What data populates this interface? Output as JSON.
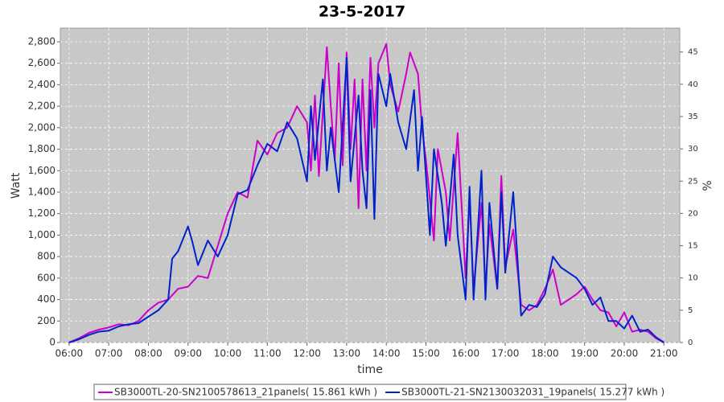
{
  "chart_data": {
    "type": "line",
    "title": "23-5-2017",
    "x_label": "time",
    "y_label": "Watt",
    "y2_label": "%",
    "xlim": [
      5.78,
      21.4
    ],
    "xticks": [
      {
        "value": 6,
        "label": "06:00"
      },
      {
        "value": 7,
        "label": "07:00"
      },
      {
        "value": 8,
        "label": "08:00"
      },
      {
        "value": 9,
        "label": "09:00"
      },
      {
        "value": 10,
        "label": "10:00"
      },
      {
        "value": 11,
        "label": "11:00"
      },
      {
        "value": 12,
        "label": "12:00"
      },
      {
        "value": 13,
        "label": "13:00"
      },
      {
        "value": 14,
        "label": "14:00"
      },
      {
        "value": 15,
        "label": "15:00"
      },
      {
        "value": 16,
        "label": "16:00"
      },
      {
        "value": 17,
        "label": "17:00"
      },
      {
        "value": 18,
        "label": "18:00"
      },
      {
        "value": 19,
        "label": "19:00"
      },
      {
        "value": 20,
        "label": "20:00"
      },
      {
        "value": 21,
        "label": "21:00"
      }
    ],
    "ylim": [
      0,
      2927
    ],
    "yticks": [
      0,
      200,
      400,
      600,
      800,
      {
        "value": 1000,
        "label": "1,000"
      },
      {
        "value": 1200,
        "label": "1,200"
      },
      {
        "value": 1400,
        "label": "1,400"
      },
      {
        "value": 1600,
        "label": "1,600"
      },
      {
        "value": 1800,
        "label": "1,800"
      },
      {
        "value": 2000,
        "label": "2,000"
      },
      {
        "value": 2200,
        "label": "2,200"
      },
      {
        "value": 2400,
        "label": "2,400"
      },
      {
        "value": 2600,
        "label": "2,600"
      },
      {
        "value": 2800,
        "label": "2,800"
      }
    ],
    "y2lim": [
      0,
      48.7
    ],
    "y2ticks": [
      0,
      5,
      10,
      15,
      20,
      25,
      30,
      35,
      40,
      45
    ],
    "grid": true,
    "legend": "bottom",
    "series": [
      {
        "name": "SB3000TL-20-SN2100578613_21panels( 15.861 kWh )",
        "color": "#cc00cc",
        "x": [
          6.0,
          6.25,
          6.5,
          6.75,
          7.0,
          7.25,
          7.5,
          7.75,
          8.0,
          8.25,
          8.5,
          8.75,
          9.0,
          9.25,
          9.5,
          9.75,
          10.0,
          10.25,
          10.5,
          10.75,
          11.0,
          11.25,
          11.5,
          11.75,
          12.0,
          12.1,
          12.2,
          12.3,
          12.5,
          12.6,
          12.7,
          12.8,
          12.9,
          13.0,
          13.1,
          13.2,
          13.3,
          13.4,
          13.5,
          13.6,
          13.7,
          13.8,
          14.0,
          14.1,
          14.3,
          14.5,
          14.6,
          14.8,
          14.9,
          15.0,
          15.2,
          15.3,
          15.5,
          15.6,
          15.8,
          16.0,
          16.1,
          16.2,
          16.4,
          16.5,
          16.6,
          16.8,
          16.9,
          17.0,
          17.2,
          17.4,
          17.6,
          17.8,
          18.0,
          18.2,
          18.4,
          18.6,
          18.8,
          19.0,
          19.2,
          19.4,
          19.6,
          19.8,
          20.0,
          20.2,
          20.4,
          20.6,
          20.8,
          21.0
        ],
        "values": [
          0,
          40,
          90,
          120,
          140,
          170,
          160,
          200,
          300,
          370,
          400,
          500,
          520,
          620,
          600,
          900,
          1200,
          1400,
          1350,
          1880,
          1750,
          1950,
          2000,
          2200,
          2050,
          1600,
          2300,
          1550,
          2750,
          2200,
          1700,
          2600,
          1650,
          2700,
          1800,
          2450,
          1250,
          2450,
          1600,
          2650,
          2000,
          2600,
          2780,
          2400,
          2150,
          2500,
          2700,
          2500,
          2000,
          1700,
          950,
          1800,
          1400,
          950,
          1950,
          600,
          1350,
          500,
          1300,
          500,
          1100,
          500,
          1550,
          700,
          1050,
          350,
          300,
          350,
          500,
          680,
          350,
          400,
          450,
          520,
          400,
          300,
          280,
          150,
          280,
          100,
          120,
          100,
          40,
          0
        ]
      },
      {
        "name": "SB3000TL-21-SN2130032031_19panels( 15.277 kWh )",
        "color": "#0022cc",
        "x": [
          6.0,
          6.25,
          6.5,
          6.75,
          7.0,
          7.25,
          7.5,
          7.75,
          8.0,
          8.25,
          8.5,
          8.6,
          8.75,
          9.0,
          9.1,
          9.25,
          9.5,
          9.75,
          10.0,
          10.25,
          10.5,
          10.75,
          11.0,
          11.25,
          11.5,
          11.75,
          12.0,
          12.1,
          12.2,
          12.4,
          12.5,
          12.6,
          12.8,
          13.0,
          13.1,
          13.3,
          13.4,
          13.5,
          13.6,
          13.7,
          13.8,
          14.0,
          14.1,
          14.3,
          14.5,
          14.7,
          14.8,
          14.9,
          15.1,
          15.2,
          15.4,
          15.5,
          15.7,
          15.8,
          16.0,
          16.1,
          16.2,
          16.4,
          16.5,
          16.6,
          16.8,
          16.9,
          17.0,
          17.2,
          17.4,
          17.6,
          17.8,
          18.0,
          18.2,
          18.4,
          18.6,
          18.8,
          19.0,
          19.2,
          19.4,
          19.6,
          19.8,
          20.0,
          20.2,
          20.4,
          20.6,
          20.8,
          21.0
        ],
        "values": [
          0,
          30,
          70,
          100,
          110,
          150,
          170,
          180,
          240,
          300,
          400,
          780,
          850,
          1080,
          950,
          720,
          950,
          800,
          1000,
          1380,
          1420,
          1650,
          1850,
          1780,
          2050,
          1900,
          1500,
          2200,
          1700,
          2450,
          1600,
          2000,
          1400,
          2650,
          1500,
          2300,
          1600,
          1250,
          2350,
          1150,
          2500,
          2200,
          2500,
          2050,
          1800,
          2350,
          1600,
          2100,
          1000,
          1800,
          1300,
          900,
          1750,
          1000,
          400,
          1450,
          400,
          1600,
          400,
          1300,
          500,
          1400,
          650,
          1400,
          250,
          350,
          330,
          450,
          800,
          700,
          650,
          600,
          500,
          350,
          420,
          200,
          200,
          130,
          250,
          100,
          120,
          50,
          0
        ]
      }
    ]
  }
}
